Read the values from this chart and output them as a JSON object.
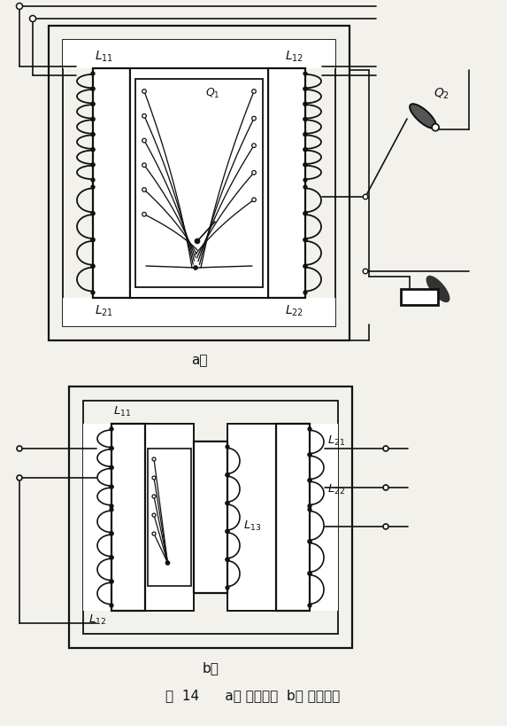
{
  "fig_width": 5.73,
  "fig_height": 8.2,
  "dpi": 100,
  "bg_color": "#f2f1ec",
  "lc": "#111111",
  "caption": "图  14      a） 二心柱式  b） 三心柱式"
}
